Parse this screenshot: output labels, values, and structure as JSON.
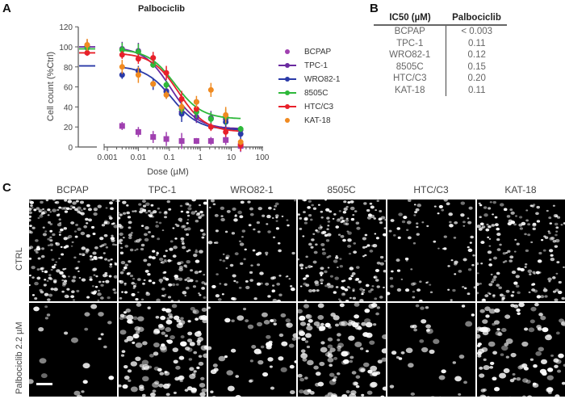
{
  "panels": {
    "a": "A",
    "b": "B",
    "c": "C"
  },
  "chart_data": {
    "type": "scatter",
    "title": "Palbociclib",
    "xlabel": "Dose (µM)",
    "ylabel": "Cell count (%Ctrl)",
    "xscale": "log",
    "xlim": [
      0.0003,
      100
    ],
    "ylim": [
      0,
      120
    ],
    "yticks": [
      "0",
      "20",
      "40",
      "60",
      "80",
      "100",
      "120"
    ],
    "xticks": [
      "0.001",
      "0.01",
      "0.1",
      "1",
      "10",
      "100"
    ],
    "doses": [
      0.003,
      0.01,
      0.03,
      0.08,
      0.25,
      0.75,
      2.2,
      6.6,
      20
    ],
    "legend_position": "right",
    "series": [
      {
        "name": "BCPAP",
        "color": "#a040b0",
        "control": 100,
        "values": [
          21,
          15,
          10,
          8,
          6,
          6,
          6,
          7,
          1
        ],
        "fit": null
      },
      {
        "name": "TPC-1",
        "color": "#6a2aa0",
        "control": 101,
        "values": [
          98,
          96,
          82,
          56,
          35,
          30,
          29,
          28,
          17
        ],
        "fit": {
          "top": 100,
          "bottom": 18,
          "ic50": 0.11
        }
      },
      {
        "name": "WRO82-1",
        "color": "#2a3aa8",
        "control": 100,
        "values": [
          72,
          76,
          63,
          55,
          33,
          45,
          28,
          25,
          13
        ],
        "fit": {
          "top": 81,
          "bottom": 17,
          "ic50": 0.12
        }
      },
      {
        "name": "8505C",
        "color": "#2db83a",
        "control": 99,
        "values": [
          97,
          95,
          82,
          62,
          38,
          35,
          28,
          30,
          18
        ],
        "fit": {
          "top": 98,
          "bottom": 28,
          "ic50": 0.15
        }
      },
      {
        "name": "HTC/C3",
        "color": "#e8202a",
        "control": 94,
        "values": [
          92,
          88,
          89,
          74,
          48,
          38,
          20,
          15,
          2
        ],
        "fit": {
          "top": 94,
          "bottom": 15,
          "ic50": 0.2
        }
      },
      {
        "name": "KAT-18",
        "color": "#f08a20",
        "control": 102,
        "values": [
          80,
          72,
          63,
          52,
          40,
          45,
          57,
          32,
          5
        ],
        "fit": null
      }
    ]
  },
  "table": {
    "headers": [
      "IC50 (µM)",
      "Palbociclib"
    ],
    "rows": [
      [
        "BCPAP",
        "< 0.003"
      ],
      [
        "TPC-1",
        "0.11"
      ],
      [
        "WRO82-1",
        "0.12"
      ],
      [
        "8505C",
        "0.15"
      ],
      [
        "HTC/C3",
        "0.20"
      ],
      [
        "KAT-18",
        "0.11"
      ]
    ]
  },
  "images": {
    "columns": [
      "BCPAP",
      "TPC-1",
      "WRO82-1",
      "8505C",
      "HTC/C3",
      "KAT-18"
    ],
    "rows": [
      "CTRL",
      "Palbociclib 2.2 µM"
    ]
  }
}
